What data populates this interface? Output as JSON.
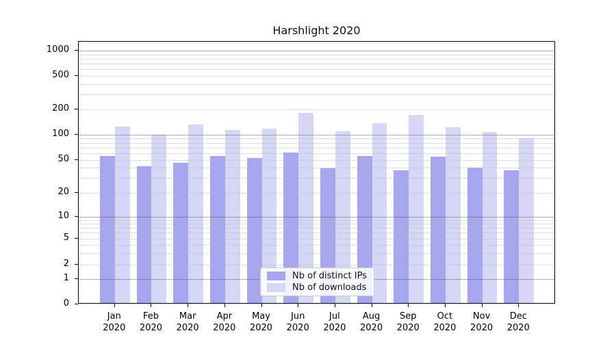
{
  "chart_data": {
    "type": "bar",
    "title": "Harshlight 2020",
    "categories": [
      "Jan 2020",
      "Feb 2020",
      "Mar 2020",
      "Apr 2020",
      "May 2020",
      "Jun 2020",
      "Jul 2020",
      "Aug 2020",
      "Sep 2020",
      "Oct 2020",
      "Nov 2020",
      "Dec 2020"
    ],
    "series": [
      {
        "name": "Nb of distinct IPs",
        "color": "#a5a5f0",
        "values": [
          54,
          40,
          44,
          54,
          51,
          59,
          38,
          54,
          36,
          53,
          39,
          36
        ]
      },
      {
        "name": "Nb of downloads",
        "color": "#d6d6f7",
        "values": [
          120,
          95,
          128,
          110,
          113,
          175,
          106,
          132,
          167,
          119,
          104,
          87
        ]
      }
    ],
    "y_ticks": [
      0,
      1,
      2,
      5,
      10,
      20,
      50,
      100,
      200,
      500,
      1000
    ],
    "yscale": "symlog",
    "ylim": [
      0,
      1300
    ],
    "xlabel": "",
    "ylabel": "",
    "grid": true,
    "legend_position": "lower center"
  }
}
